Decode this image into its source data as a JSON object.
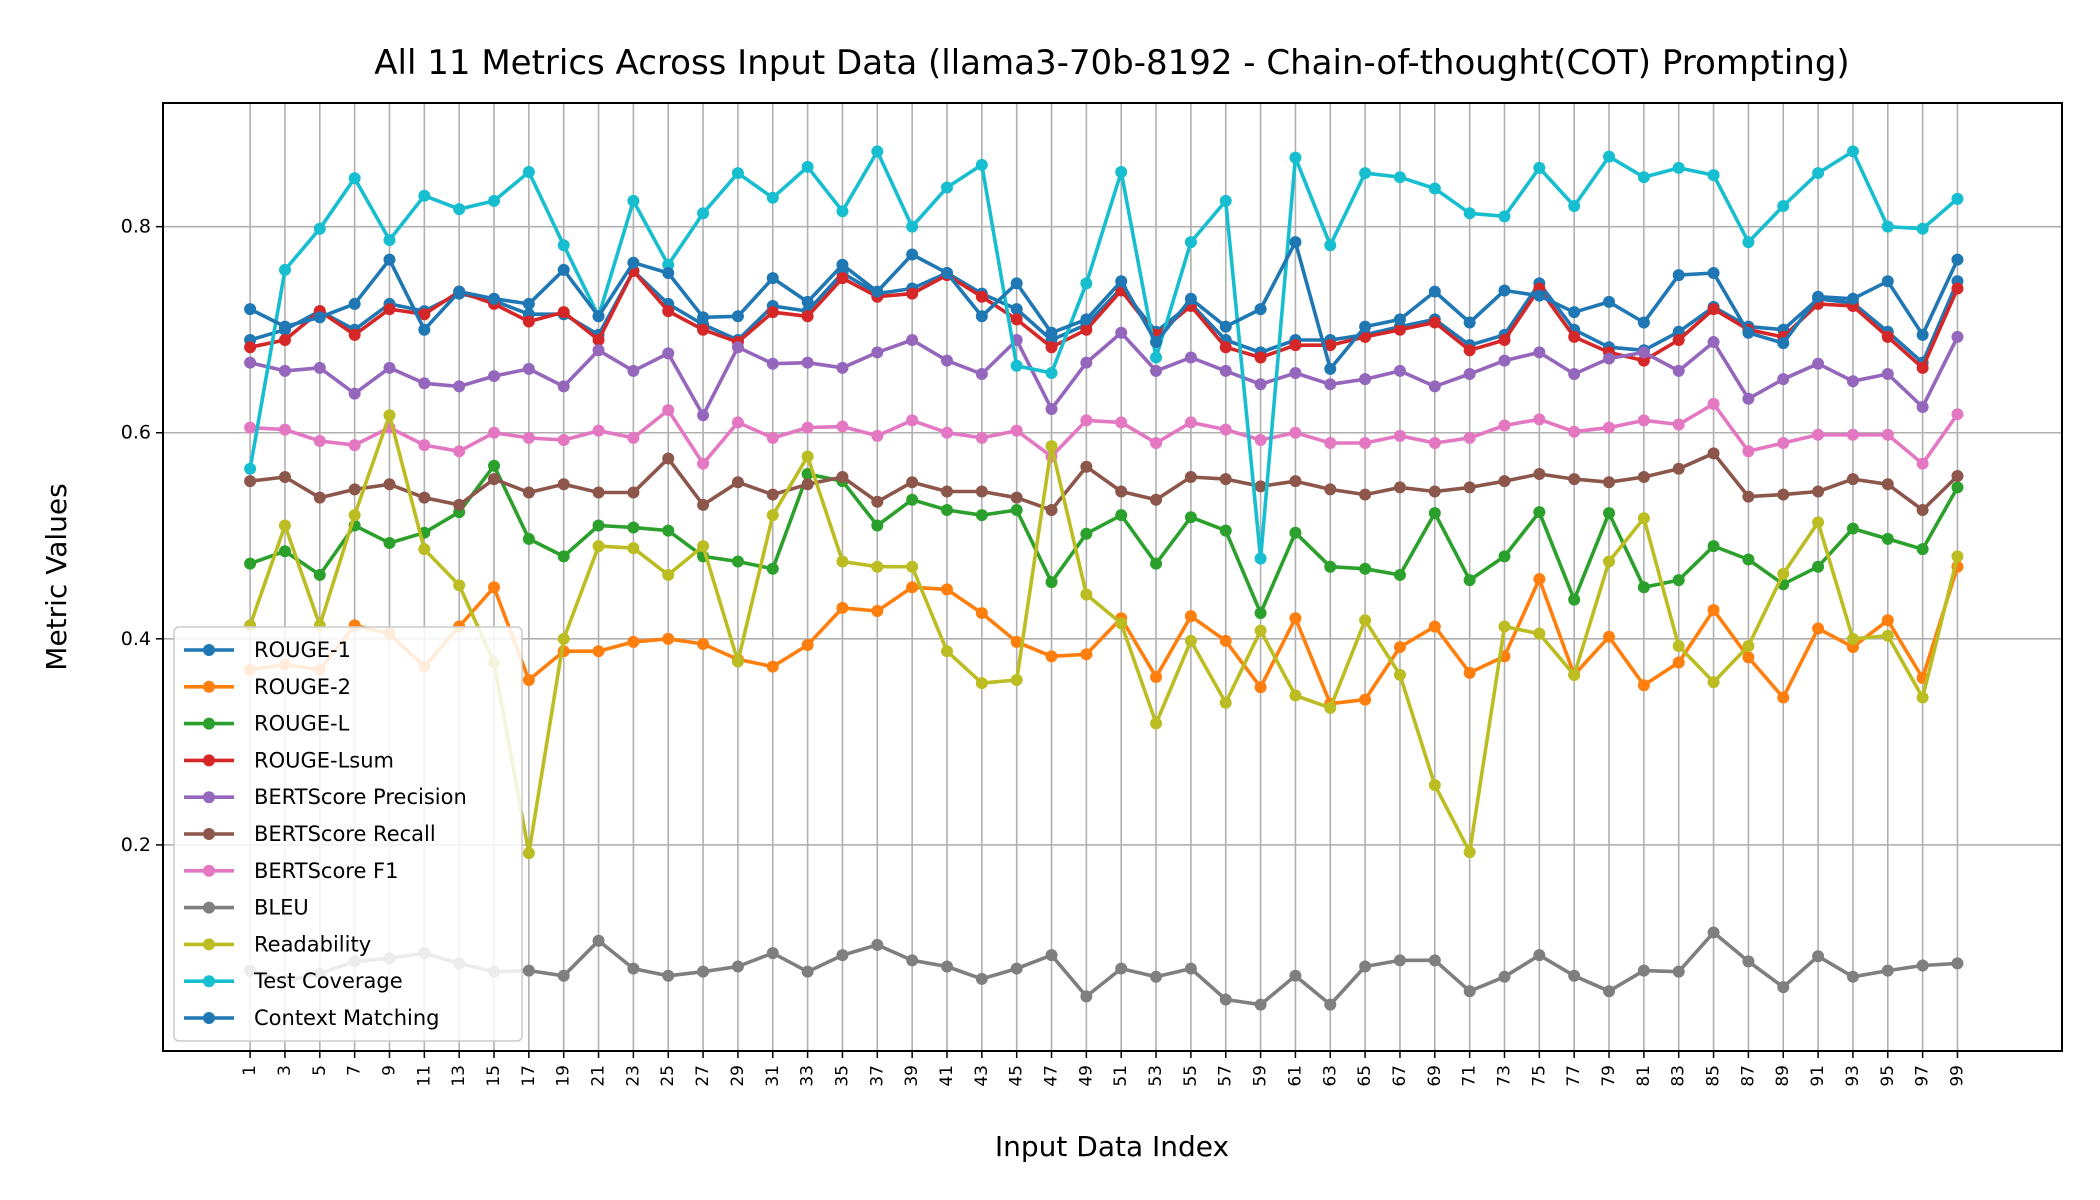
{
  "chart_data": {
    "type": "line",
    "title": "All 11 Metrics Across Input Data (llama3-70b-8192 - Chain-of-thought(COT) Prompting)",
    "xlabel": "Input Data Index",
    "ylabel": "Metric Values",
    "x": [
      1,
      3,
      5,
      7,
      9,
      11,
      13,
      15,
      17,
      19,
      21,
      23,
      25,
      27,
      29,
      31,
      33,
      35,
      37,
      39,
      41,
      43,
      45,
      47,
      49,
      51,
      53,
      55,
      57,
      59,
      61,
      63,
      65,
      67,
      69,
      71,
      73,
      75,
      77,
      79,
      81,
      83,
      85,
      87,
      89,
      91,
      93,
      95,
      97,
      99
    ],
    "xlim": [
      -4,
      105
    ],
    "ylim": [
      0,
      0.92
    ],
    "yticks": [
      0.2,
      0.4,
      0.6,
      0.8
    ],
    "yticklabels": [
      "0.2",
      "0.4",
      "0.6",
      "0.8"
    ],
    "xticklabels": [
      "1",
      "3",
      "5",
      "7",
      "9",
      "11",
      "13",
      "15",
      "17",
      "19",
      "21",
      "23",
      "25",
      "27",
      "29",
      "31",
      "33",
      "35",
      "37",
      "39",
      "41",
      "43",
      "45",
      "47",
      "49",
      "51",
      "53",
      "55",
      "57",
      "59",
      "61",
      "63",
      "65",
      "67",
      "69",
      "71",
      "73",
      "75",
      "77",
      "79",
      "81",
      "83",
      "85",
      "87",
      "89",
      "91",
      "93",
      "95",
      "97",
      "99"
    ],
    "grid": true,
    "legend_position": "lower-left",
    "series": [
      {
        "name": "ROUGE-1",
        "color": "#1f77b4",
        "values": [
          0.69,
          0.7,
          0.718,
          0.7,
          0.725,
          0.718,
          0.735,
          0.728,
          0.715,
          0.715,
          0.695,
          0.757,
          0.725,
          0.705,
          0.69,
          0.723,
          0.718,
          0.755,
          0.735,
          0.74,
          0.755,
          0.735,
          0.72,
          0.69,
          0.705,
          0.74,
          0.698,
          0.725,
          0.69,
          0.678,
          0.69,
          0.69,
          0.695,
          0.703,
          0.71,
          0.685,
          0.695,
          0.745,
          0.7,
          0.683,
          0.68,
          0.698,
          0.722,
          0.703,
          0.7,
          0.73,
          0.726,
          0.698,
          0.668,
          0.747
        ]
      },
      {
        "name": "ROUGE-2",
        "color": "#ff7f0e",
        "values": [
          0.37,
          0.375,
          0.37,
          0.413,
          0.405,
          0.373,
          0.412,
          0.45,
          0.36,
          0.388,
          0.388,
          0.397,
          0.4,
          0.395,
          0.38,
          0.373,
          0.394,
          0.43,
          0.427,
          0.45,
          0.448,
          0.425,
          0.397,
          0.383,
          0.385,
          0.42,
          0.363,
          0.422,
          0.398,
          0.353,
          0.42,
          0.337,
          0.341,
          0.392,
          0.412,
          0.367,
          0.383,
          0.458,
          0.365,
          0.402,
          0.355,
          0.377,
          0.428,
          0.382,
          0.343,
          0.41,
          0.392,
          0.418,
          0.362,
          0.47
        ]
      },
      {
        "name": "ROUGE-L",
        "color": "#2ca02c",
        "values": [
          0.473,
          0.485,
          0.462,
          0.51,
          0.493,
          0.503,
          0.523,
          0.568,
          0.497,
          0.48,
          0.51,
          0.508,
          0.505,
          0.48,
          0.475,
          0.468,
          0.56,
          0.553,
          0.51,
          0.535,
          0.525,
          0.52,
          0.525,
          0.455,
          0.502,
          0.52,
          0.473,
          0.518,
          0.505,
          0.425,
          0.503,
          0.47,
          0.468,
          0.462,
          0.522,
          0.457,
          0.48,
          0.523,
          0.438,
          0.522,
          0.45,
          0.457,
          0.49,
          0.477,
          0.453,
          0.47,
          0.507,
          0.497,
          0.487,
          0.547
        ]
      },
      {
        "name": "ROUGE-Lsum",
        "color": "#d62728",
        "values": [
          0.683,
          0.69,
          0.718,
          0.695,
          0.72,
          0.715,
          0.737,
          0.725,
          0.708,
          0.717,
          0.69,
          0.757,
          0.718,
          0.7,
          0.688,
          0.717,
          0.713,
          0.75,
          0.732,
          0.735,
          0.753,
          0.732,
          0.71,
          0.683,
          0.7,
          0.738,
          0.695,
          0.723,
          0.683,
          0.673,
          0.685,
          0.685,
          0.693,
          0.7,
          0.707,
          0.68,
          0.69,
          0.74,
          0.693,
          0.678,
          0.67,
          0.69,
          0.72,
          0.7,
          0.693,
          0.725,
          0.723,
          0.693,
          0.663,
          0.74
        ]
      },
      {
        "name": "BERTScore Precision",
        "color": "#9467bd",
        "values": [
          0.668,
          0.66,
          0.663,
          0.638,
          0.663,
          0.648,
          0.645,
          0.655,
          0.662,
          0.645,
          0.68,
          0.66,
          0.677,
          0.617,
          0.683,
          0.667,
          0.668,
          0.663,
          0.678,
          0.69,
          0.67,
          0.657,
          0.69,
          0.623,
          0.668,
          0.697,
          0.66,
          0.673,
          0.66,
          0.647,
          0.658,
          0.647,
          0.652,
          0.66,
          0.645,
          0.657,
          0.67,
          0.678,
          0.657,
          0.672,
          0.678,
          0.66,
          0.688,
          0.633,
          0.652,
          0.667,
          0.65,
          0.657,
          0.625,
          0.693
        ]
      },
      {
        "name": "BERTScore Recall",
        "color": "#8c564b",
        "values": [
          0.553,
          0.557,
          0.537,
          0.545,
          0.55,
          0.537,
          0.53,
          0.555,
          0.542,
          0.55,
          0.542,
          0.542,
          0.575,
          0.53,
          0.552,
          0.54,
          0.55,
          0.557,
          0.533,
          0.552,
          0.543,
          0.543,
          0.537,
          0.525,
          0.567,
          0.543,
          0.535,
          0.557,
          0.555,
          0.548,
          0.553,
          0.545,
          0.54,
          0.547,
          0.543,
          0.547,
          0.553,
          0.56,
          0.555,
          0.552,
          0.557,
          0.565,
          0.58,
          0.538,
          0.54,
          0.543,
          0.555,
          0.55,
          0.525,
          0.558
        ]
      },
      {
        "name": "BERTScore F1",
        "color": "#e377c2",
        "values": [
          0.605,
          0.603,
          0.592,
          0.588,
          0.605,
          0.588,
          0.582,
          0.6,
          0.595,
          0.593,
          0.602,
          0.595,
          0.622,
          0.57,
          0.61,
          0.595,
          0.605,
          0.606,
          0.597,
          0.612,
          0.6,
          0.595,
          0.602,
          0.577,
          0.612,
          0.61,
          0.59,
          0.61,
          0.603,
          0.593,
          0.6,
          0.59,
          0.59,
          0.597,
          0.59,
          0.595,
          0.607,
          0.613,
          0.601,
          0.605,
          0.612,
          0.608,
          0.628,
          0.582,
          0.59,
          0.598,
          0.598,
          0.598,
          0.57,
          0.618
        ]
      },
      {
        "name": "BLEU",
        "color": "#7f7f7f",
        "values": [
          0.078,
          0.068,
          0.075,
          0.087,
          0.09,
          0.095,
          0.085,
          0.077,
          0.078,
          0.073,
          0.107,
          0.08,
          0.073,
          0.077,
          0.082,
          0.095,
          0.077,
          0.093,
          0.103,
          0.088,
          0.082,
          0.07,
          0.08,
          0.093,
          0.053,
          0.08,
          0.072,
          0.08,
          0.05,
          0.045,
          0.073,
          0.045,
          0.082,
          0.088,
          0.088,
          0.058,
          0.072,
          0.093,
          0.073,
          0.058,
          0.078,
          0.077,
          0.115,
          0.087,
          0.062,
          0.092,
          0.072,
          0.078,
          0.083,
          0.085
        ]
      },
      {
        "name": "Readability",
        "color": "#bcbd22",
        "values": [
          0.413,
          0.51,
          0.413,
          0.52,
          0.617,
          0.487,
          0.452,
          0.377,
          0.192,
          0.4,
          0.49,
          0.488,
          0.462,
          0.49,
          0.378,
          0.52,
          0.577,
          0.475,
          0.47,
          0.47,
          0.388,
          0.357,
          0.36,
          0.587,
          0.443,
          0.415,
          0.318,
          0.398,
          0.338,
          0.408,
          0.345,
          0.333,
          0.418,
          0.365,
          0.258,
          0.193,
          0.412,
          0.405,
          0.365,
          0.475,
          0.517,
          0.393,
          0.358,
          0.393,
          0.463,
          0.513,
          0.4,
          0.403,
          0.343,
          0.48
        ]
      },
      {
        "name": "Test Coverage",
        "color": "#17becf",
        "values": [
          0.565,
          0.758,
          0.798,
          0.847,
          0.787,
          0.83,
          0.817,
          0.825,
          0.853,
          0.782,
          0.713,
          0.825,
          0.763,
          0.813,
          0.852,
          0.828,
          0.858,
          0.815,
          0.873,
          0.8,
          0.838,
          0.86,
          0.665,
          0.658,
          0.745,
          0.853,
          0.673,
          0.785,
          0.825,
          0.478,
          0.867,
          0.782,
          0.852,
          0.848,
          0.837,
          0.813,
          0.81,
          0.857,
          0.82,
          0.868,
          0.848,
          0.857,
          0.85,
          0.785,
          0.82,
          0.852,
          0.873,
          0.8,
          0.798,
          0.827
        ]
      },
      {
        "name": "Context Matching",
        "color": "#1f77b4",
        "values": [
          0.72,
          0.703,
          0.712,
          0.725,
          0.768,
          0.7,
          0.737,
          0.73,
          0.725,
          0.758,
          0.713,
          0.765,
          0.755,
          0.712,
          0.713,
          0.75,
          0.727,
          0.763,
          0.737,
          0.773,
          0.755,
          0.713,
          0.745,
          0.697,
          0.71,
          0.747,
          0.688,
          0.73,
          0.703,
          0.72,
          0.785,
          0.662,
          0.703,
          0.71,
          0.737,
          0.707,
          0.738,
          0.733,
          0.717,
          0.727,
          0.707,
          0.753,
          0.755,
          0.697,
          0.687,
          0.732,
          0.73,
          0.747,
          0.695,
          0.768
        ]
      }
    ]
  }
}
